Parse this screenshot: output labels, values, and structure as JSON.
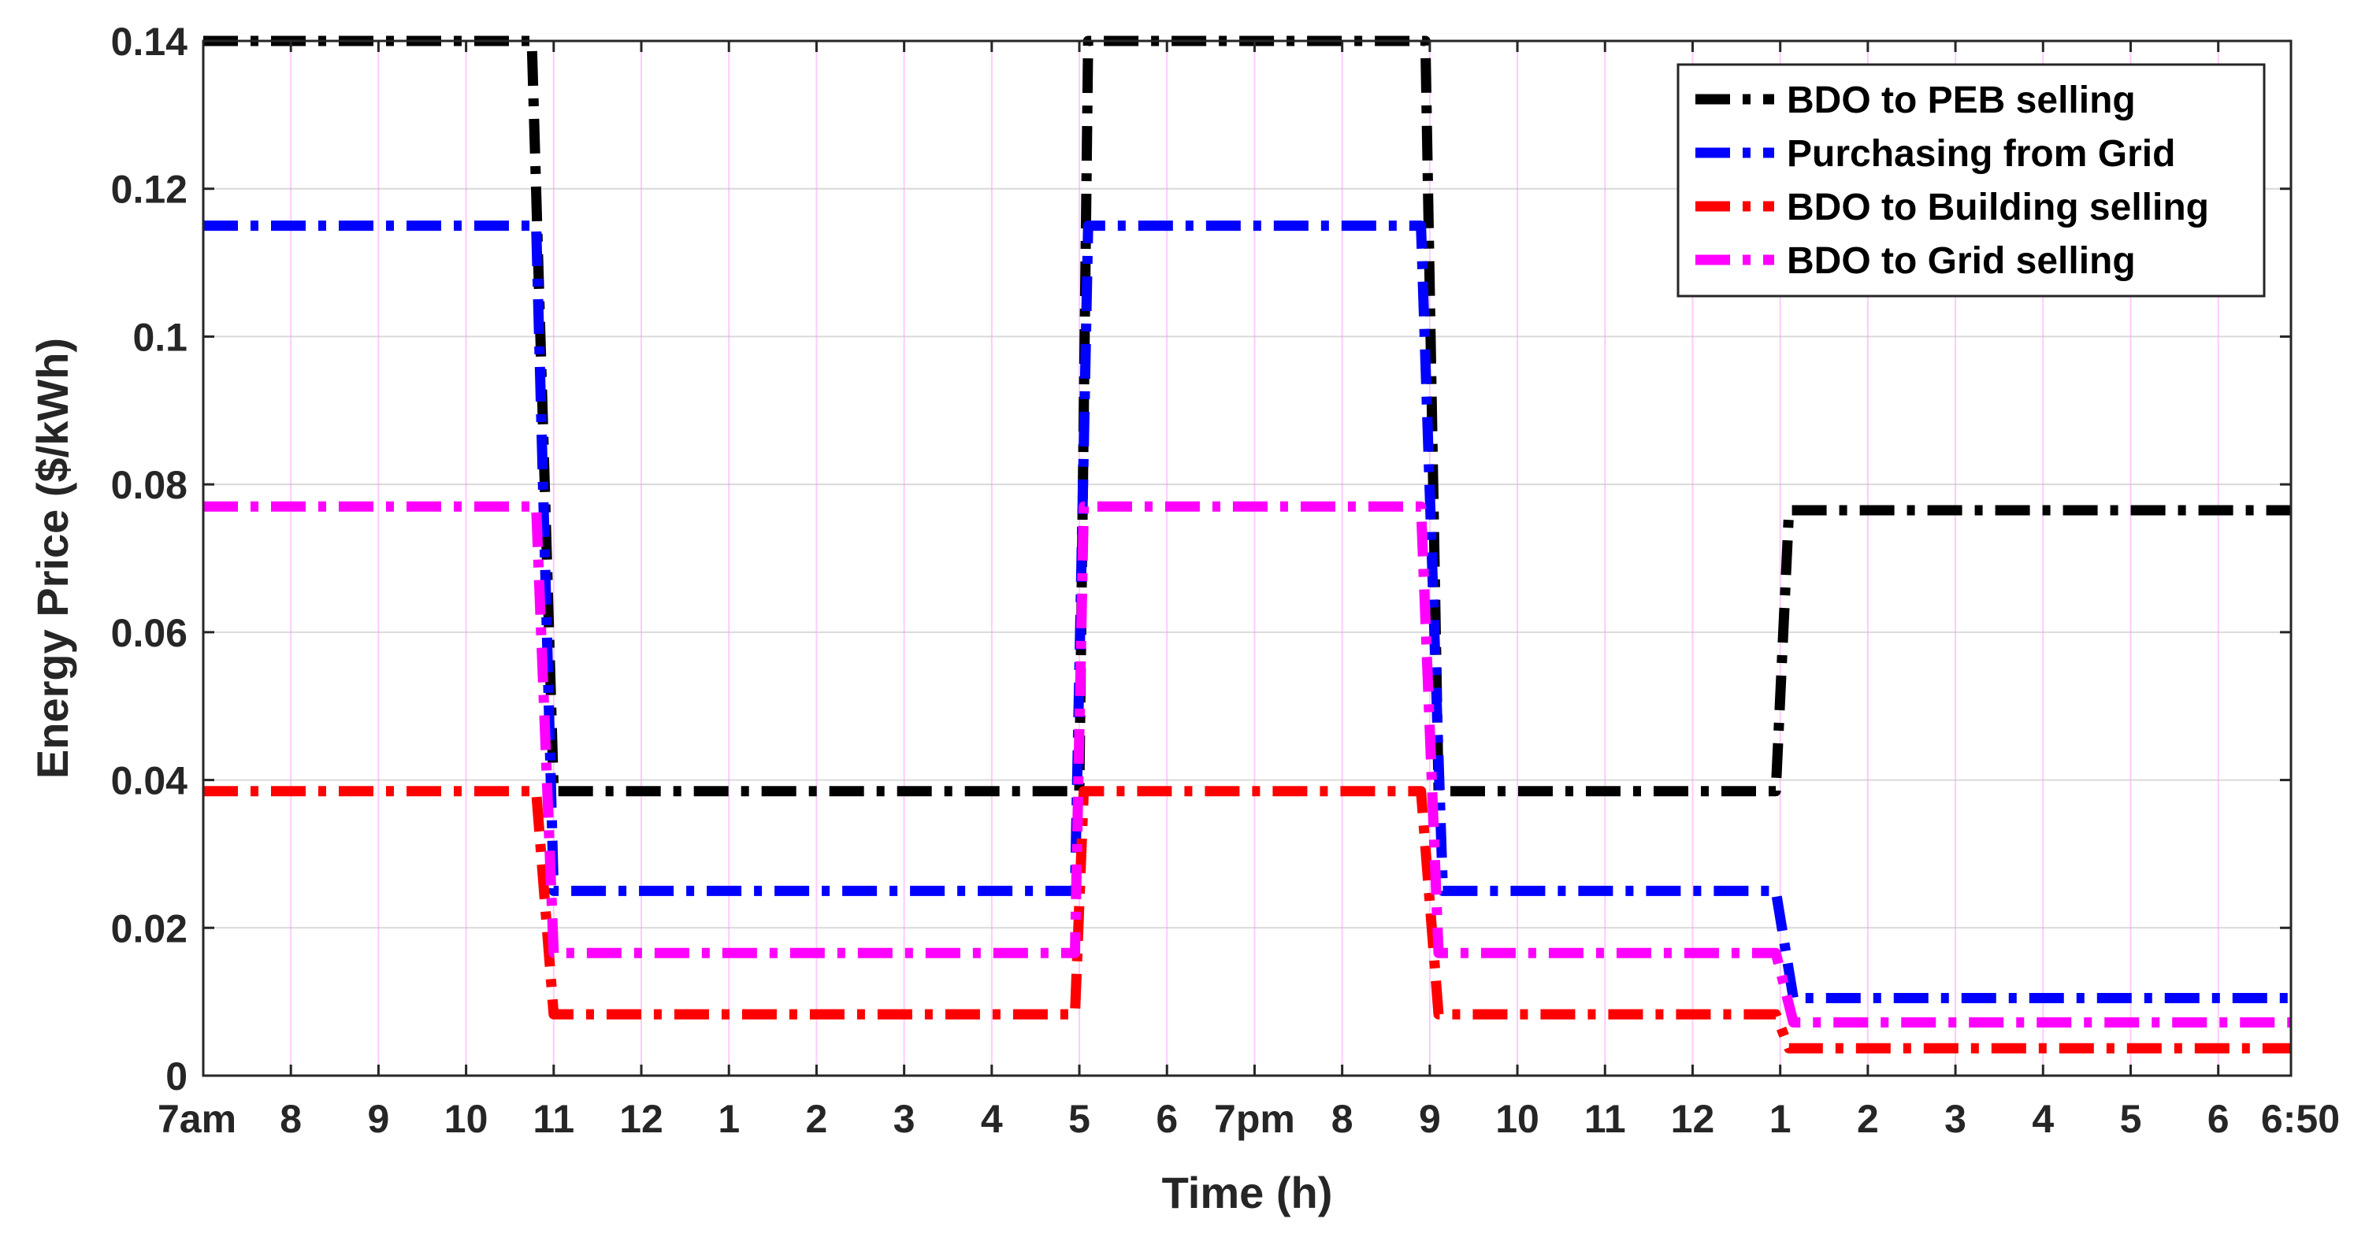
{
  "chart_data": {
    "type": "line",
    "title": "",
    "xlabel": "Time (h)",
    "ylabel": "Energy Price ($/kWh)",
    "x_unit": "hours since 7am",
    "xlim": [
      0,
      23.83
    ],
    "ylim": [
      0,
      0.14
    ],
    "grid": true,
    "grid_color": "#ff66ff",
    "legend_position": "top-right",
    "xticks": [
      {
        "x": 0,
        "label": "7am"
      },
      {
        "x": 1,
        "label": "8"
      },
      {
        "x": 2,
        "label": "9"
      },
      {
        "x": 3,
        "label": "10"
      },
      {
        "x": 4,
        "label": "11"
      },
      {
        "x": 5,
        "label": "12"
      },
      {
        "x": 6,
        "label": "1"
      },
      {
        "x": 7,
        "label": "2"
      },
      {
        "x": 8,
        "label": "3"
      },
      {
        "x": 9,
        "label": "4"
      },
      {
        "x": 10,
        "label": "5"
      },
      {
        "x": 11,
        "label": "6"
      },
      {
        "x": 12,
        "label": "7pm"
      },
      {
        "x": 13,
        "label": "8"
      },
      {
        "x": 14,
        "label": "9"
      },
      {
        "x": 15,
        "label": "10"
      },
      {
        "x": 16,
        "label": "11"
      },
      {
        "x": 17,
        "label": "12"
      },
      {
        "x": 18,
        "label": "1"
      },
      {
        "x": 19,
        "label": "2"
      },
      {
        "x": 20,
        "label": "3"
      },
      {
        "x": 21,
        "label": "4"
      },
      {
        "x": 22,
        "label": "5"
      },
      {
        "x": 23,
        "label": "6"
      },
      {
        "x": 23.83,
        "label": "6:50"
      }
    ],
    "yticks": [
      {
        "y": 0,
        "label": "0"
      },
      {
        "y": 0.02,
        "label": "0.02"
      },
      {
        "y": 0.04,
        "label": "0.04"
      },
      {
        "y": 0.06,
        "label": "0.06"
      },
      {
        "y": 0.08,
        "label": "0.08"
      },
      {
        "y": 0.1,
        "label": "0.1"
      },
      {
        "y": 0.12,
        "label": "0.12"
      },
      {
        "y": 0.14,
        "label": "0.14"
      }
    ],
    "series": [
      {
        "name": "BDO to PEB selling",
        "color": "#000000",
        "points": [
          [
            0,
            0.14
          ],
          [
            3.75,
            0.14
          ],
          [
            4.0,
            0.0385
          ],
          [
            10.0,
            0.0385
          ],
          [
            10.1,
            0.14
          ],
          [
            13.95,
            0.14
          ],
          [
            14.1,
            0.0385
          ],
          [
            17.95,
            0.0385
          ],
          [
            18.1,
            0.0765
          ],
          [
            23.83,
            0.0765
          ]
        ]
      },
      {
        "name": "Purchasing from Grid",
        "color": "#0000ff",
        "points": [
          [
            0,
            0.115
          ],
          [
            3.8,
            0.115
          ],
          [
            4.0,
            0.025
          ],
          [
            9.95,
            0.025
          ],
          [
            10.1,
            0.115
          ],
          [
            13.9,
            0.115
          ],
          [
            14.15,
            0.025
          ],
          [
            17.95,
            0.025
          ],
          [
            18.15,
            0.0105
          ],
          [
            23.83,
            0.0105
          ]
        ]
      },
      {
        "name": "BDO to Building selling",
        "color": "#ff0000",
        "points": [
          [
            0,
            0.0385
          ],
          [
            3.8,
            0.0385
          ],
          [
            4.0,
            0.0083
          ],
          [
            9.95,
            0.0083
          ],
          [
            10.05,
            0.0385
          ],
          [
            13.9,
            0.0385
          ],
          [
            14.1,
            0.0083
          ],
          [
            17.95,
            0.0083
          ],
          [
            18.1,
            0.0037
          ],
          [
            23.83,
            0.0037
          ]
        ]
      },
      {
        "name": "BDO to Grid selling",
        "color": "#ff00ff",
        "points": [
          [
            0,
            0.077
          ],
          [
            3.8,
            0.077
          ],
          [
            4.0,
            0.0166
          ],
          [
            9.95,
            0.0166
          ],
          [
            10.05,
            0.077
          ],
          [
            13.9,
            0.077
          ],
          [
            14.1,
            0.0166
          ],
          [
            17.95,
            0.0166
          ],
          [
            18.15,
            0.0072
          ],
          [
            23.83,
            0.0072
          ]
        ]
      }
    ]
  }
}
